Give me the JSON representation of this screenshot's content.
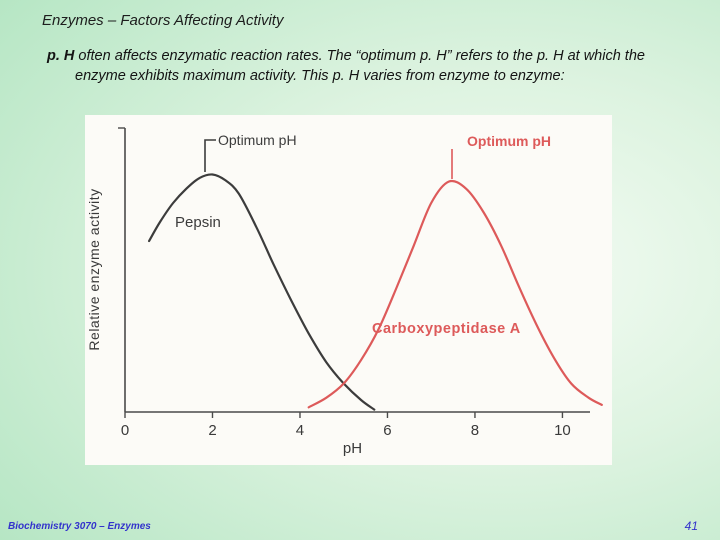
{
  "slide": {
    "title": "Enzymes – Factors Affecting Activity",
    "body_lead": "p. H",
    "body_rest": " often affects enzymatic reaction rates.  The “optimum p. H” refers to the p. H at which the enzyme exhibits maximum activity.  This p. H varies from enzyme to enzyme:"
  },
  "footer": {
    "left": "Biochemistry 3070 – Enzymes",
    "page": "41"
  },
  "chart_data": {
    "type": "line",
    "title": "",
    "xlabel": "pH",
    "ylabel": "Relative enzyme activity",
    "xlim": [
      0,
      10.95
    ],
    "ylim": [
      0,
      1.2
    ],
    "xticks": [
      0,
      2,
      4,
      6,
      8,
      10
    ],
    "grid": false,
    "legend_position": "none",
    "series": [
      {
        "name": "Pepsin",
        "color": "#3c3c3c",
        "optimum_ph": 2.0,
        "x": [
          0.55,
          0.8,
          1.1,
          1.4,
          1.7,
          2.0,
          2.3,
          2.6,
          3.0,
          3.4,
          3.8,
          4.2,
          4.6,
          5.0,
          5.4,
          5.7
        ],
        "y": [
          0.72,
          0.8,
          0.88,
          0.94,
          0.985,
          1.0,
          0.975,
          0.92,
          0.78,
          0.62,
          0.47,
          0.33,
          0.21,
          0.12,
          0.05,
          0.01
        ]
      },
      {
        "name": "Carboxypeptidase A",
        "color": "#dd5a5a",
        "optimum_ph": 7.4,
        "x": [
          4.2,
          4.6,
          5.0,
          5.4,
          5.8,
          6.2,
          6.6,
          7.0,
          7.4,
          7.8,
          8.2,
          8.6,
          9.0,
          9.4,
          9.8,
          10.2,
          10.6,
          10.9
        ],
        "y": [
          0.02,
          0.06,
          0.12,
          0.22,
          0.35,
          0.52,
          0.7,
          0.88,
          0.97,
          0.94,
          0.84,
          0.7,
          0.53,
          0.37,
          0.23,
          0.12,
          0.06,
          0.03
        ]
      }
    ],
    "annotations": [
      {
        "text": "Optimum pH",
        "series": "Pepsin",
        "color": "#3c3c3c"
      },
      {
        "text": "Optimum pH",
        "series": "Carboxypeptidase A",
        "color": "#dd5a5a"
      }
    ]
  }
}
